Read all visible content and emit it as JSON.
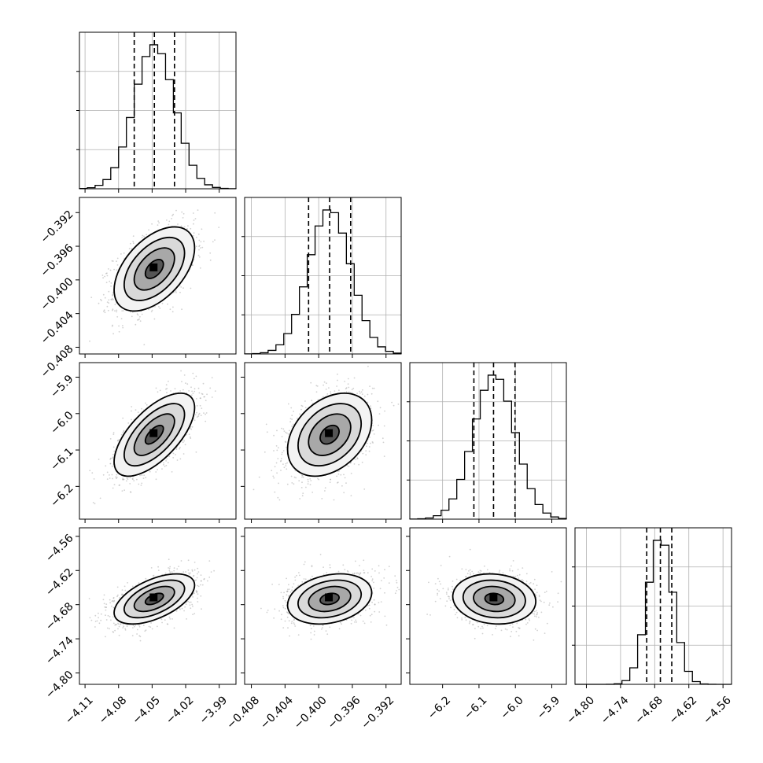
{
  "chart_data": {
    "type": "corner",
    "title": "",
    "parameters": [
      {
        "range": [
          -4.115,
          -3.975
        ],
        "ticks": [
          -4.11,
          -4.08,
          -4.05,
          -4.02,
          -3.99
        ],
        "tick_labels": [
          "−4.11",
          "−4.08",
          "−4.05",
          "−4.02",
          "−3.99"
        ],
        "quantiles": [
          -4.066,
          -4.048,
          -4.03
        ],
        "mean": -4.048,
        "sd": 0.018
      },
      {
        "range": [
          -0.4088,
          -0.3902
        ],
        "ticks": [
          -0.408,
          -0.404,
          -0.4,
          -0.396,
          -0.392
        ],
        "tick_labels": [
          "−0.408",
          "−0.404",
          "−0.400",
          "−0.396",
          "−0.392"
        ],
        "quantiles": [
          -0.4012,
          -0.3987,
          -0.3962
        ],
        "mean": -0.3987,
        "sd": 0.0025
      },
      {
        "range": [
          -6.29,
          -5.86
        ],
        "ticks": [
          -6.2,
          -6.1,
          -6.0,
          -5.9
        ],
        "tick_labels": [
          "−6.2",
          "−6.1",
          "−6.0",
          "−5.9"
        ],
        "quantiles": [
          -6.114,
          -6.06,
          -6.001
        ],
        "mean": -6.058,
        "sd": 0.057
      },
      {
        "range": [
          -4.82,
          -4.545
        ],
        "ticks": [
          -4.8,
          -4.74,
          -4.68,
          -4.62,
          -4.56
        ],
        "tick_labels": [
          "−4.80",
          "−4.74",
          "−4.68",
          "−4.62",
          "−4.56"
        ],
        "quantiles": [
          -4.694,
          -4.67,
          -4.65
        ],
        "mean": -4.67,
        "sd": 0.022
      }
    ],
    "correlations": [
      {
        "pair": [
          1,
          0
        ],
        "rho": 0.5
      },
      {
        "pair": [
          2,
          0
        ],
        "rho": 0.65
      },
      {
        "pair": [
          2,
          1
        ],
        "rho": 0.35
      },
      {
        "pair": [
          3,
          0
        ],
        "rho": 0.55
      },
      {
        "pair": [
          3,
          1
        ],
        "rho": 0.25
      },
      {
        "pair": [
          3,
          2
        ],
        "rho": -0.1
      }
    ],
    "colors": {
      "contour": "#000000",
      "points": "#9a9a9a",
      "grid": "#b0b0b0",
      "axes": "#000000"
    }
  }
}
